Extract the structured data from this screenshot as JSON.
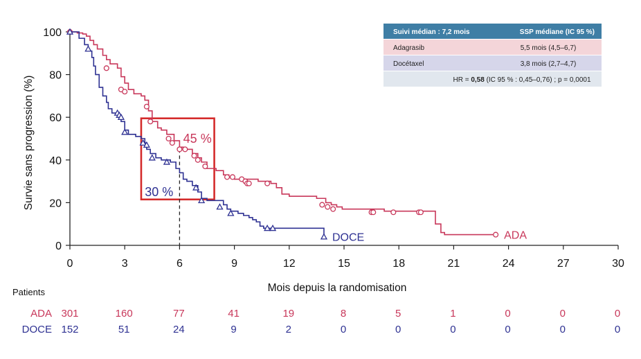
{
  "chart_data": {
    "type": "line",
    "xlabel": "Mois depuis la randomisation",
    "ylabel": "Survie sans progression (%)",
    "xlim": [
      0,
      30
    ],
    "ylim": [
      0,
      100
    ],
    "xticks": [
      "0",
      "3",
      "6",
      "9",
      "12",
      "15",
      "18",
      "21",
      "24",
      "27",
      "30"
    ],
    "yticks": [
      "0",
      "20",
      "40",
      "60",
      "80",
      "100"
    ],
    "colors": {
      "ADA": "#c8375a",
      "DOCE": "#2e3192",
      "highlight": "#d42b2b",
      "table_header": "#3f7ea5"
    },
    "series": [
      {
        "name": "ADA",
        "label": "ADA",
        "color": "#c8375a",
        "marker": "circle",
        "points": [
          [
            0,
            100
          ],
          [
            0.4,
            99.5
          ],
          [
            0.7,
            99
          ],
          [
            0.9,
            98
          ],
          [
            1.1,
            96
          ],
          [
            1.3,
            94
          ],
          [
            1.5,
            92
          ],
          [
            1.8,
            89
          ],
          [
            2.0,
            87
          ],
          [
            2.2,
            85
          ],
          [
            2.6,
            83
          ],
          [
            2.8,
            79
          ],
          [
            3.0,
            76
          ],
          [
            3.2,
            73
          ],
          [
            3.5,
            71
          ],
          [
            3.9,
            70
          ],
          [
            4.1,
            68
          ],
          [
            4.3,
            63
          ],
          [
            4.5,
            58
          ],
          [
            4.8,
            55
          ],
          [
            5.0,
            54
          ],
          [
            5.3,
            52
          ],
          [
            5.7,
            49
          ],
          [
            6.0,
            46
          ],
          [
            6.2,
            45
          ],
          [
            6.7,
            43
          ],
          [
            7.0,
            41
          ],
          [
            7.2,
            39
          ],
          [
            7.5,
            36
          ],
          [
            8.0,
            35
          ],
          [
            8.4,
            33
          ],
          [
            8.7,
            32
          ],
          [
            9.0,
            31
          ],
          [
            10.0,
            31
          ],
          [
            10.3,
            30
          ],
          [
            11.0,
            29
          ],
          [
            11.3,
            27
          ],
          [
            11.6,
            24
          ],
          [
            12.0,
            23
          ],
          [
            13.5,
            22
          ],
          [
            14.0,
            20
          ],
          [
            14.3,
            19
          ],
          [
            14.6,
            18
          ],
          [
            14.9,
            17
          ],
          [
            16.7,
            17
          ],
          [
            17.2,
            16
          ],
          [
            19.8,
            16
          ],
          [
            20.0,
            10
          ],
          [
            20.2,
            10
          ],
          [
            20.3,
            6
          ],
          [
            20.5,
            5
          ],
          [
            23.3,
            5
          ]
        ],
        "censor": [
          [
            0,
            100
          ],
          [
            2.0,
            83
          ],
          [
            2.8,
            73
          ],
          [
            3.0,
            72
          ],
          [
            4.2,
            65
          ],
          [
            4.4,
            58
          ],
          [
            5.4,
            50
          ],
          [
            5.6,
            48
          ],
          [
            6.0,
            45
          ],
          [
            6.3,
            45
          ],
          [
            6.8,
            42
          ],
          [
            7.0,
            40
          ],
          [
            7.4,
            37
          ],
          [
            8.6,
            32
          ],
          [
            8.9,
            32
          ],
          [
            9.4,
            31
          ],
          [
            9.6,
            30
          ],
          [
            9.7,
            29
          ],
          [
            9.8,
            29
          ],
          [
            10.8,
            29
          ],
          [
            13.8,
            19
          ],
          [
            14.1,
            18
          ],
          [
            14.4,
            17
          ],
          [
            16.5,
            15.5
          ],
          [
            16.6,
            15.5
          ],
          [
            17.7,
            15.5
          ],
          [
            19.1,
            15.5
          ],
          [
            19.2,
            15.5
          ],
          [
            23.3,
            5
          ]
        ]
      },
      {
        "name": "DOCE",
        "label": "DOCE",
        "color": "#2e3192",
        "marker": "triangle",
        "points": [
          [
            0,
            100
          ],
          [
            0.5,
            97
          ],
          [
            0.8,
            94
          ],
          [
            1.0,
            91
          ],
          [
            1.2,
            88
          ],
          [
            1.3,
            84
          ],
          [
            1.4,
            80
          ],
          [
            1.6,
            74
          ],
          [
            1.8,
            70
          ],
          [
            2.0,
            67
          ],
          [
            2.1,
            64
          ],
          [
            2.3,
            62
          ],
          [
            2.6,
            61
          ],
          [
            2.8,
            58
          ],
          [
            3.0,
            54
          ],
          [
            3.2,
            52
          ],
          [
            3.6,
            51
          ],
          [
            3.9,
            50
          ],
          [
            4.1,
            48
          ],
          [
            4.2,
            45
          ],
          [
            4.4,
            43
          ],
          [
            4.7,
            41
          ],
          [
            5.0,
            40
          ],
          [
            5.5,
            39
          ],
          [
            5.8,
            36
          ],
          [
            6.0,
            34
          ],
          [
            6.2,
            31
          ],
          [
            6.4,
            30
          ],
          [
            6.7,
            28
          ],
          [
            7.0,
            25
          ],
          [
            7.2,
            22
          ],
          [
            7.5,
            21
          ],
          [
            8.2,
            21
          ],
          [
            8.4,
            19
          ],
          [
            8.6,
            17
          ],
          [
            8.8,
            16
          ],
          [
            9.2,
            15
          ],
          [
            9.5,
            14
          ],
          [
            9.8,
            13
          ],
          [
            10.0,
            12
          ],
          [
            10.2,
            11
          ],
          [
            10.4,
            9
          ],
          [
            10.6,
            8
          ],
          [
            13.9,
            8
          ],
          [
            13.9,
            4
          ]
        ],
        "censor": [
          [
            0,
            100
          ],
          [
            1.0,
            92
          ],
          [
            2.6,
            62
          ],
          [
            2.7,
            61
          ],
          [
            2.8,
            60
          ],
          [
            3.0,
            53
          ],
          [
            4.0,
            48
          ],
          [
            4.2,
            47
          ],
          [
            4.5,
            41
          ],
          [
            5.3,
            39
          ],
          [
            6.9,
            27
          ],
          [
            7.2,
            21
          ],
          [
            8.2,
            18
          ],
          [
            8.8,
            15
          ],
          [
            10.8,
            8
          ],
          [
            11.1,
            8
          ],
          [
            13.9,
            4
          ]
        ]
      }
    ],
    "median_line": {
      "x": 6,
      "y_range": [
        0,
        45
      ]
    },
    "annotations": [
      {
        "text": "45 %",
        "x": 6.2,
        "y": 50,
        "color": "#c8375a"
      },
      {
        "text": "30 %",
        "x": 4.1,
        "y": 25,
        "color": "#2e3192"
      }
    ],
    "highlight_box": {
      "x_range": [
        3.9,
        7.9
      ],
      "y_range": [
        21.5,
        59.5
      ]
    }
  },
  "summary_table": {
    "header_left": "Suivi médian : 7,2 mois",
    "header_right": "SSP médiane (IC 95 %)",
    "rows": [
      {
        "arm": "Adagrasib",
        "value": "5,5 mois (4,5–6,7)",
        "color": "#f4d5d9"
      },
      {
        "arm": "Docétaxel",
        "value": "3,8 mois (2,7–4,7)",
        "color": "#d6d6ea"
      }
    ],
    "hr_prefix": "HR = ",
    "hr_bold": "0,58",
    "hr_suffix": " (IC 95 % : 0,45–0,76) ; p = 0,0001",
    "hr_bg": "#e1e7ee"
  },
  "risk_table": {
    "title": "Patients",
    "rows": [
      {
        "arm": "ADA",
        "color": "#c8375a",
        "values": [
          "301",
          "160",
          "77",
          "41",
          "19",
          "8",
          "5",
          "1",
          "0",
          "0",
          "0"
        ]
      },
      {
        "arm": "DOCE",
        "color": "#2e3192",
        "values": [
          "152",
          "51",
          "24",
          "9",
          "2",
          "0",
          "0",
          "0",
          "0",
          "0",
          "0"
        ]
      }
    ]
  }
}
